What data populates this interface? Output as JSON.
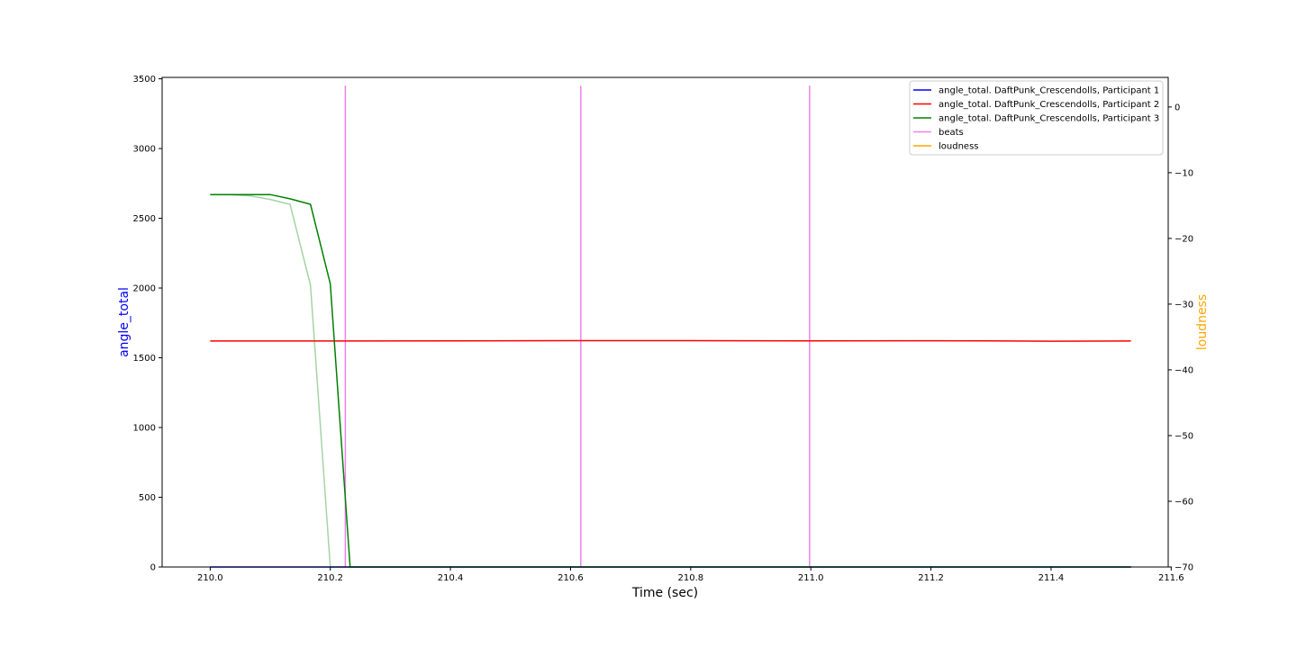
{
  "chart_data": {
    "type": "line",
    "title": "",
    "xlabel": "Time (sec)",
    "ylabel_left": "angle_total",
    "ylabel_right": "loudness",
    "ylabel_left_color": "#0000ff",
    "ylabel_right_color": "#ffa500",
    "xlim": [
      209.92,
      211.595
    ],
    "ylim_left": [
      0,
      3510
    ],
    "ylim_right": [
      -70,
      4.5
    ],
    "xticks": [
      210.0,
      210.2,
      210.4,
      210.6,
      210.8,
      211.0,
      211.2,
      211.4,
      211.6
    ],
    "xtick_labels": [
      "210.0",
      "210.2",
      "210.4",
      "210.6",
      "210.8",
      "211.0",
      "211.2",
      "211.4",
      "211.6"
    ],
    "yticks_left": [
      0,
      500,
      1000,
      1500,
      2000,
      2500,
      3000,
      3500
    ],
    "ytick_labels_left": [
      "0",
      "500",
      "1000",
      "1500",
      "2000",
      "2500",
      "3000",
      "3500"
    ],
    "yticks_right": [
      0,
      -10,
      -20,
      -30,
      -40,
      -50,
      -60,
      -70
    ],
    "ytick_labels_right": [
      "0",
      "−10",
      "−20",
      "−30",
      "−40",
      "−50",
      "−60",
      "−70"
    ],
    "legend_position": "top-right",
    "legend": [
      {
        "label": "angle_total. DaftPunk_Crescendolls, Participant 1",
        "color": "#0000ff"
      },
      {
        "label": "angle_total. DaftPunk_Crescendolls, Participant 2",
        "color": "#ff0000"
      },
      {
        "label": "angle_total. DaftPunk_Crescendolls, Participant 3",
        "color": "#008000"
      },
      {
        "label": "beats",
        "color": "#ee82ee"
      },
      {
        "label": "loudness",
        "color": "#ffa500"
      }
    ],
    "series": [
      {
        "name": "angle_total. DaftPunk_Crescendolls, Participant 1",
        "axis": "left",
        "color": "#0000ff",
        "opacity": 1,
        "x": [
          210.0,
          210.2,
          210.4,
          210.6,
          210.8,
          211.0,
          211.2,
          211.4,
          211.533
        ],
        "y": [
          0,
          0,
          0,
          0,
          0,
          0,
          0,
          0,
          0
        ]
      },
      {
        "name": "angle_total. DaftPunk_Crescendolls, Participant 2",
        "axis": "left",
        "color": "#ff0000",
        "opacity": 1,
        "x": [
          210.0,
          210.2,
          210.4,
          210.6,
          210.8,
          211.0,
          211.2,
          211.3,
          211.4,
          211.533
        ],
        "y": [
          1620,
          1620,
          1621,
          1623,
          1623,
          1621,
          1622,
          1621,
          1619,
          1620
        ]
      },
      {
        "name": "angle_total. DaftPunk_Crescendolls, Participant 3",
        "axis": "left",
        "color": "#008000",
        "opacity": 1,
        "x": [
          210.0,
          210.033,
          210.067,
          210.1,
          210.133,
          210.167,
          210.2,
          210.233,
          210.267,
          210.4,
          210.6,
          210.8,
          211.0,
          211.2,
          211.4,
          211.533
        ],
        "y": [
          2670,
          2670,
          2670,
          2670,
          2640,
          2600,
          2030,
          0,
          0,
          0,
          0,
          0,
          0,
          0,
          0,
          0
        ]
      },
      {
        "name": "",
        "axis": "left",
        "color": "#008000",
        "opacity": 0.35,
        "x": [
          210.0,
          210.033,
          210.067,
          210.1,
          210.133,
          210.167,
          210.2,
          210.233
        ],
        "y": [
          2670,
          2670,
          2660,
          2635,
          2600,
          2020,
          0,
          0
        ]
      }
    ],
    "beats": [
      210.225,
      210.617,
      210.998
    ],
    "beats_color": "#ee82ee",
    "beat_line_top_left_units": 3450
  }
}
